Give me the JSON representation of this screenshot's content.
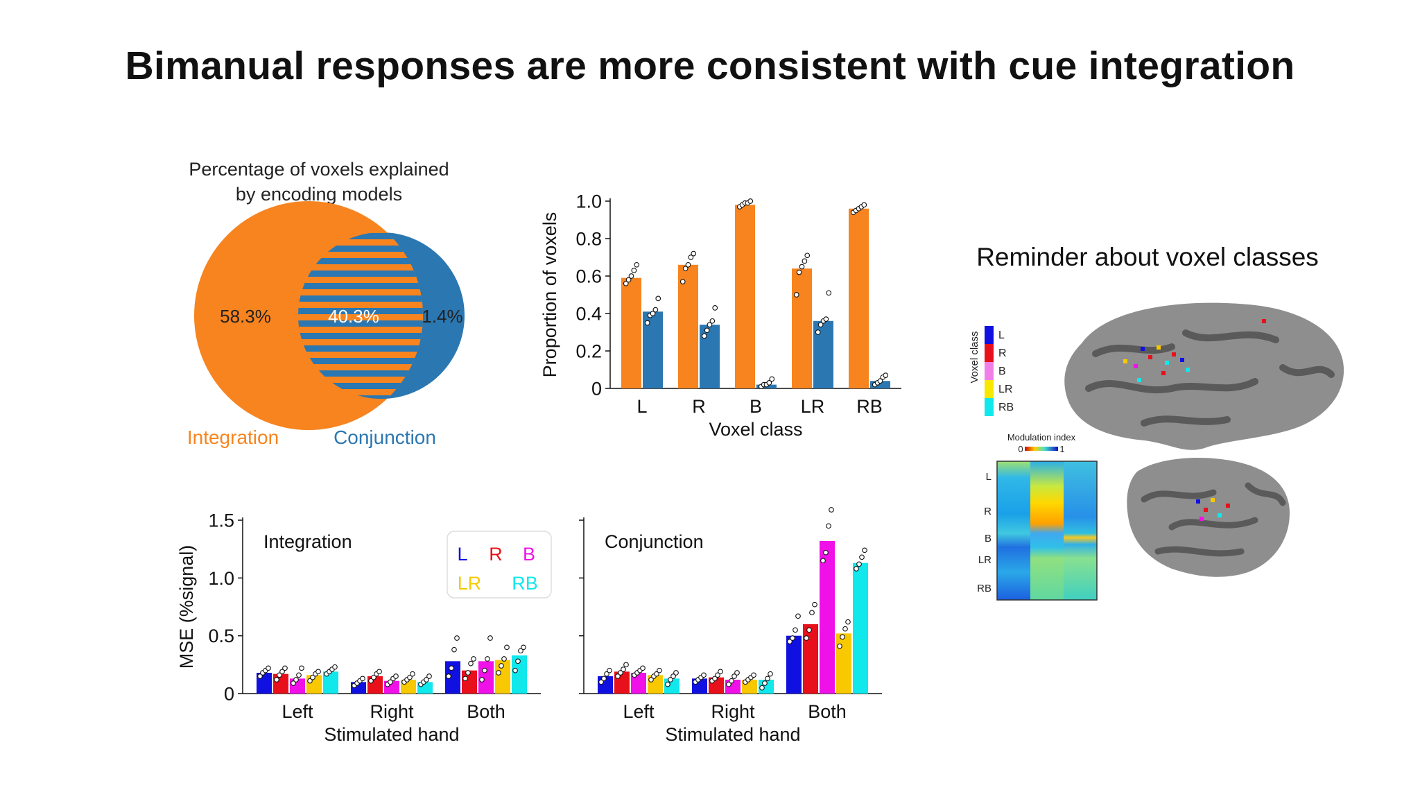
{
  "title": "Bimanual responses are more consistent with cue integration",
  "colors": {
    "orange": "#F7841E",
    "blue": "#2B77B1",
    "L": "#1010E0",
    "R": "#E8101A",
    "B": "#F010E8",
    "LR": "#F8C800",
    "RB": "#10E8EC"
  },
  "venn": {
    "title_lines": [
      "Percentage of voxels explained",
      "by encoding models"
    ],
    "integration_pct": "58.3%",
    "overlap_pct": "40.3%",
    "conjunction_pct": "1.4%",
    "integration_label": "Integration",
    "conjunction_label": "Conjunction"
  },
  "reminder": {
    "title": "Reminder about voxel classes",
    "voxel_class_label": "Voxel class",
    "legend": [
      "L",
      "R",
      "B",
      "LR",
      "RB"
    ],
    "modulation_label": "Modulation index",
    "mod_min": "0",
    "mod_max": "1",
    "row_labels": [
      "L",
      "R",
      "B",
      "LR",
      "RB"
    ]
  },
  "chart_data": [
    {
      "id": "proportion",
      "type": "bar",
      "categories": [
        "L",
        "R",
        "B",
        "LR",
        "RB"
      ],
      "series": [
        {
          "name": "Integration",
          "color": "#F7841E",
          "values": [
            0.59,
            0.66,
            0.98,
            0.64,
            0.96
          ],
          "points": [
            [
              0.56,
              0.58,
              0.6,
              0.63,
              0.66
            ],
            [
              0.57,
              0.64,
              0.66,
              0.7,
              0.72
            ],
            [
              0.97,
              0.98,
              0.99,
              0.99,
              1.0
            ],
            [
              0.5,
              0.62,
              0.65,
              0.68,
              0.71
            ],
            [
              0.94,
              0.95,
              0.96,
              0.97,
              0.98
            ]
          ]
        },
        {
          "name": "Conjunction",
          "color": "#2B77B1",
          "values": [
            0.41,
            0.34,
            0.02,
            0.36,
            0.04
          ],
          "points": [
            [
              0.35,
              0.39,
              0.4,
              0.42,
              0.48
            ],
            [
              0.28,
              0.31,
              0.34,
              0.36,
              0.43
            ],
            [
              0.01,
              0.02,
              0.02,
              0.03,
              0.05
            ],
            [
              0.3,
              0.34,
              0.36,
              0.37,
              0.51
            ],
            [
              0.02,
              0.03,
              0.04,
              0.06,
              0.07
            ]
          ]
        }
      ],
      "xlabel": "Voxel class",
      "ylabel": "Proportion of voxels",
      "ylim": [
        0,
        1.0
      ],
      "yticks": [
        0,
        0.2,
        0.4,
        0.6,
        0.8,
        1.0
      ],
      "ytick_labels": [
        "0",
        "0.2",
        "0.4",
        "0.6",
        "0.8",
        "1.0"
      ]
    },
    {
      "id": "mse-integration",
      "type": "bar",
      "panel_label": "Integration",
      "categories": [
        "Left",
        "Right",
        "Both"
      ],
      "series": [
        {
          "name": "L",
          "values": [
            0.18,
            0.1,
            0.28
          ],
          "points": [
            [
              0.15,
              0.18,
              0.2,
              0.22
            ],
            [
              0.07,
              0.09,
              0.11,
              0.13
            ],
            [
              0.15,
              0.22,
              0.38,
              0.48
            ]
          ]
        },
        {
          "name": "R",
          "values": [
            0.17,
            0.15,
            0.2
          ],
          "points": [
            [
              0.12,
              0.16,
              0.19,
              0.22
            ],
            [
              0.11,
              0.14,
              0.17,
              0.19
            ],
            [
              0.13,
              0.18,
              0.26,
              0.3
            ]
          ]
        },
        {
          "name": "B",
          "values": [
            0.13,
            0.11,
            0.28
          ],
          "points": [
            [
              0.09,
              0.12,
              0.16,
              0.22
            ],
            [
              0.08,
              0.1,
              0.13,
              0.15
            ],
            [
              0.12,
              0.2,
              0.3,
              0.48
            ]
          ]
        },
        {
          "name": "LR",
          "values": [
            0.16,
            0.12,
            0.29
          ],
          "points": [
            [
              0.11,
              0.14,
              0.17,
              0.19
            ],
            [
              0.1,
              0.12,
              0.14,
              0.17
            ],
            [
              0.18,
              0.24,
              0.3,
              0.4
            ]
          ]
        },
        {
          "name": "RB",
          "values": [
            0.19,
            0.1,
            0.33
          ],
          "points": [
            [
              0.17,
              0.19,
              0.21,
              0.23
            ],
            [
              0.08,
              0.1,
              0.12,
              0.15
            ],
            [
              0.2,
              0.28,
              0.37,
              0.4
            ]
          ]
        }
      ],
      "xlabel": "Stimulated hand",
      "ylabel": "MSE (%signal)",
      "ylim": [
        0,
        1.5
      ],
      "yticks": [
        0,
        0.5,
        1.0,
        1.5
      ],
      "ytick_labels": [
        "0",
        "0.5",
        "1.0",
        "1.5"
      ],
      "legend": [
        "L",
        "R",
        "B",
        "LR",
        "RB"
      ]
    },
    {
      "id": "mse-conjunction",
      "type": "bar",
      "panel_label": "Conjunction",
      "categories": [
        "Left",
        "Right",
        "Both"
      ],
      "series": [
        {
          "name": "L",
          "values": [
            0.15,
            0.13,
            0.5
          ],
          "points": [
            [
              0.1,
              0.13,
              0.17,
              0.2
            ],
            [
              0.1,
              0.12,
              0.14,
              0.16
            ],
            [
              0.45,
              0.48,
              0.55,
              0.67
            ]
          ]
        },
        {
          "name": "R",
          "values": [
            0.19,
            0.14,
            0.6
          ],
          "points": [
            [
              0.15,
              0.18,
              0.21,
              0.25
            ],
            [
              0.11,
              0.13,
              0.16,
              0.19
            ],
            [
              0.48,
              0.55,
              0.7,
              0.77
            ]
          ]
        },
        {
          "name": "B",
          "values": [
            0.18,
            0.12,
            1.32
          ],
          "points": [
            [
              0.16,
              0.18,
              0.2,
              0.22
            ],
            [
              0.08,
              0.11,
              0.15,
              0.18
            ],
            [
              1.15,
              1.22,
              1.45,
              1.59
            ]
          ]
        },
        {
          "name": "LR",
          "values": [
            0.16,
            0.12,
            0.52
          ],
          "points": [
            [
              0.12,
              0.15,
              0.17,
              0.2
            ],
            [
              0.1,
              0.12,
              0.14,
              0.16
            ],
            [
              0.41,
              0.49,
              0.56,
              0.62
            ]
          ]
        },
        {
          "name": "RB",
          "values": [
            0.13,
            0.12,
            1.13
          ],
          "points": [
            [
              0.08,
              0.12,
              0.15,
              0.18
            ],
            [
              0.05,
              0.09,
              0.13,
              0.17
            ],
            [
              1.08,
              1.12,
              1.18,
              1.24
            ]
          ]
        }
      ],
      "xlabel": "Stimulated hand",
      "ylabel": "",
      "ylim": [
        0,
        1.5
      ],
      "yticks": [
        0,
        0.5,
        1.0,
        1.5
      ],
      "ytick_labels": [
        "",
        "",
        "",
        ""
      ]
    }
  ]
}
